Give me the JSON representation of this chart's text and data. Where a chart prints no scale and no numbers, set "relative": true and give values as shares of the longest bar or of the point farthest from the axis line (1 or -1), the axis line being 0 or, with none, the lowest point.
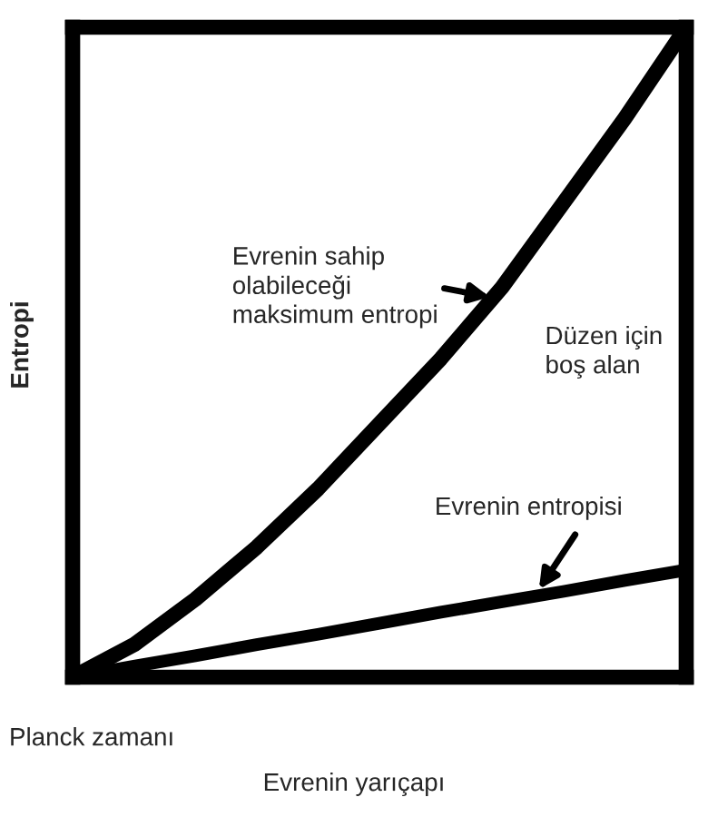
{
  "chart_data": {
    "type": "line",
    "relative": true,
    "xlabel": "Evrenin yarıçapı",
    "ylabel": "Entropi",
    "categories": [
      null,
      null,
      null,
      null,
      null,
      null,
      null,
      null,
      null,
      null,
      null
    ],
    "series": [
      {
        "color": "#000000",
        "values": [
          0,
          0.05,
          0.12,
          0.2,
          0.29,
          0.39,
          0.49,
          0.6,
          0.73,
          0.86,
          1.0
        ]
      },
      {
        "color": "#000000",
        "values": [
          0,
          0.017,
          0.033,
          0.05,
          0.066,
          0.083,
          0.1,
          0.116,
          0.132,
          0.149,
          0.165
        ]
      }
    ],
    "annotations": [
      "Evrenin sahip\nolabileceği\nmaksimum entropi",
      "Düzen için\nboş alan",
      "Evrenin entropisi",
      "Planck zamanı"
    ],
    "legend": false,
    "grid": false,
    "marker": "none",
    "line_style": "solid"
  }
}
